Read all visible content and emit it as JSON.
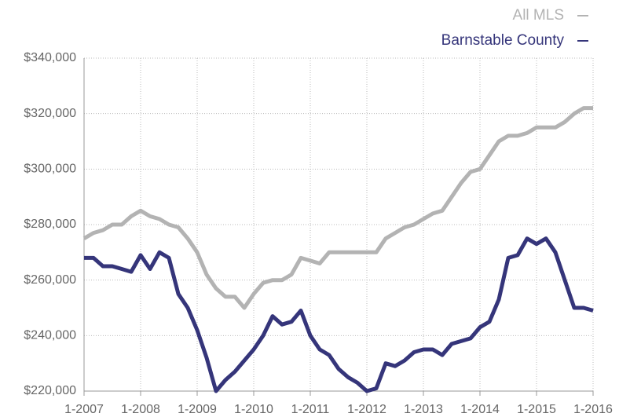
{
  "chart_data": {
    "type": "line",
    "categories": [
      "1-2007",
      null,
      null,
      null,
      null,
      null,
      "1-2008",
      null,
      null,
      null,
      null,
      null,
      "1-2009",
      null,
      null,
      null,
      null,
      null,
      "1-2010",
      null,
      null,
      null,
      null,
      null,
      "1-2011",
      null,
      null,
      null,
      null,
      null,
      "1-2012",
      null,
      null,
      null,
      null,
      null,
      "1-2013",
      null,
      null,
      null,
      null,
      null,
      "1-2014",
      null,
      null,
      null,
      null,
      null,
      "1-2015",
      null,
      null,
      null,
      null,
      null,
      "1-2016"
    ],
    "series": [
      {
        "name": "All MLS",
        "color": "#b3b3b3",
        "values": [
          275000,
          277000,
          278000,
          280000,
          280000,
          283000,
          285000,
          283000,
          282000,
          280000,
          279000,
          275000,
          270000,
          262000,
          257000,
          254000,
          254000,
          250000,
          255000,
          259000,
          260000,
          260000,
          262000,
          268000,
          267000,
          266000,
          270000,
          270000,
          270000,
          270000,
          270000,
          270000,
          275000,
          277000,
          279000,
          280000,
          282000,
          284000,
          285000,
          290000,
          295000,
          299000,
          300000,
          305000,
          310000,
          312000,
          312000,
          313000,
          315000,
          315000,
          315000,
          317000,
          320000,
          322000,
          322000
        ]
      },
      {
        "name": "Barnstable County",
        "color": "#35357a",
        "values": [
          268000,
          268000,
          265000,
          265000,
          264000,
          263000,
          269000,
          264000,
          270000,
          268000,
          255000,
          250000,
          242000,
          232000,
          220000,
          224000,
          227000,
          231000,
          235000,
          240000,
          247000,
          244000,
          245000,
          249000,
          240000,
          235000,
          233000,
          228000,
          225000,
          223000,
          220000,
          221000,
          230000,
          229000,
          231000,
          234000,
          235000,
          235000,
          233000,
          237000,
          238000,
          239000,
          243000,
          245000,
          253000,
          268000,
          269000,
          275000,
          273000,
          275000,
          270000,
          260000,
          250000,
          250000,
          249000
        ]
      }
    ],
    "ylim": [
      220000,
      340000
    ],
    "yticks": [
      {
        "value": 220000,
        "label": "$220,000"
      },
      {
        "value": 240000,
        "label": "$240,000"
      },
      {
        "value": 260000,
        "label": "$260,000"
      },
      {
        "value": 280000,
        "label": "$280,000"
      },
      {
        "value": 300000,
        "label": "$300,000"
      },
      {
        "value": 320000,
        "label": "$320,000"
      },
      {
        "value": 340000,
        "label": "$340,000"
      }
    ],
    "grid": true,
    "legend": "upper right"
  }
}
